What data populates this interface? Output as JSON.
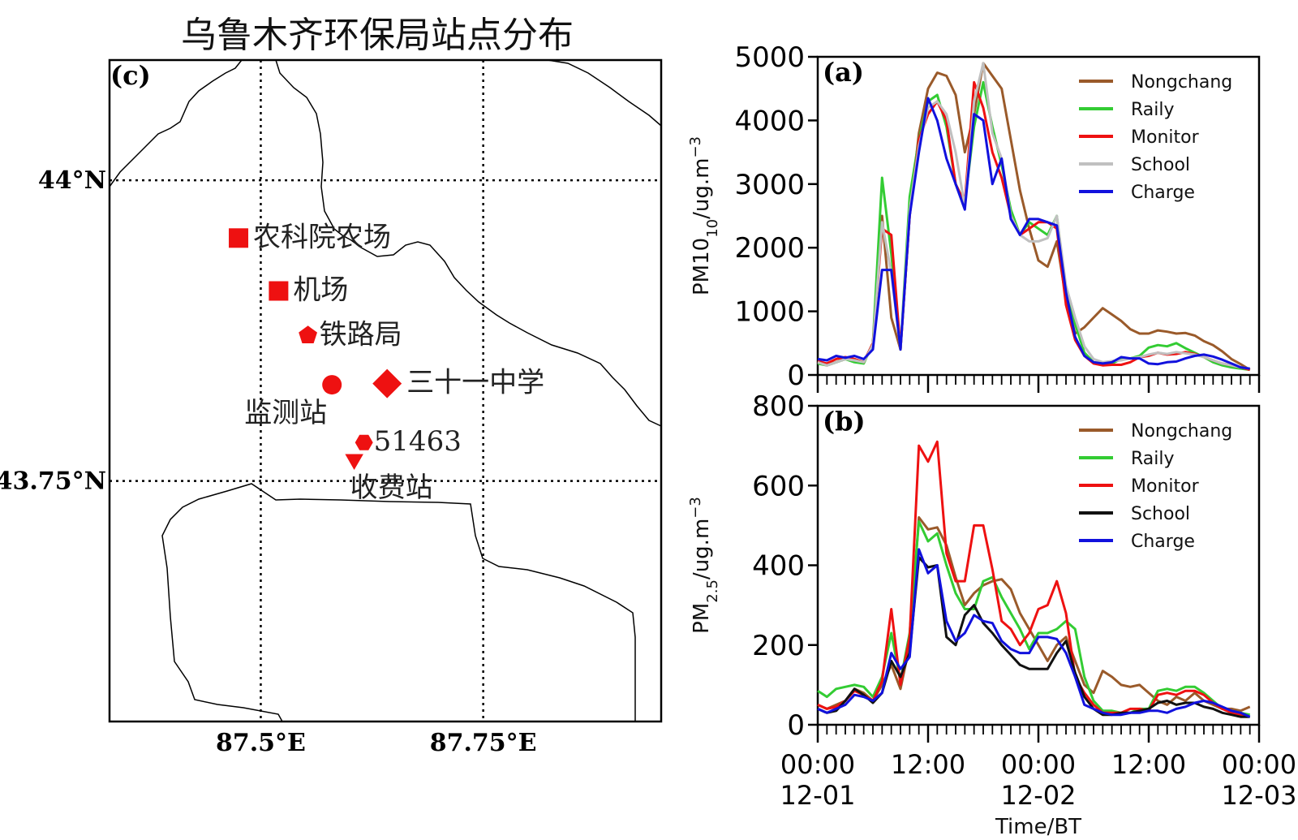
{
  "map": {
    "title": "乌鲁木齐环保局站点分布",
    "panel_label": "(c)",
    "lon_labels": [
      "87.5°E",
      "87.75°E"
    ],
    "lat_labels": [
      "44°N",
      "43.75°N"
    ],
    "lon_values": [
      87.5,
      87.75
    ],
    "lat_values": [
      44.0,
      43.75
    ],
    "lon_range": [
      87.33,
      87.95
    ],
    "lat_range": [
      43.55,
      44.1
    ],
    "marker_color": "#ee1111",
    "stations": [
      {
        "label": "农科院农场",
        "marker": "square",
        "lon": 87.475,
        "lat": 43.952
      },
      {
        "label": "机场",
        "marker": "square",
        "lon": 87.52,
        "lat": 43.908
      },
      {
        "label": "铁路局",
        "marker": "pentagon",
        "lon": 87.553,
        "lat": 43.871
      },
      {
        "label": "监测站",
        "marker": "circle",
        "lon": 87.58,
        "lat": 43.83
      },
      {
        "label": "三十一中学",
        "marker": "diamond",
        "lon": 87.642,
        "lat": 43.831
      },
      {
        "label": "51463",
        "marker": "hexagon",
        "lon": 87.616,
        "lat": 43.782
      },
      {
        "label": "收费站",
        "marker": "triangle-down",
        "lon": 87.605,
        "lat": 43.768
      }
    ]
  },
  "chart_data": [
    {
      "type": "line",
      "panel_label": "(a)",
      "ylabel_main": "PM10",
      "ylabel_sub": "10",
      "ylabel_unit": "/ug.m",
      "ylabel_sup": "−3",
      "ylim": [
        0,
        5000
      ],
      "yticks": [
        0,
        1000,
        2000,
        3000,
        4000,
        5000
      ],
      "legend_position": "upper-right",
      "x_hours": [
        0,
        1,
        2,
        3,
        4,
        5,
        6,
        7,
        8,
        9,
        10,
        11,
        12,
        13,
        14,
        15,
        16,
        17,
        18,
        19,
        20,
        21,
        22,
        23,
        24,
        25,
        26,
        27,
        28,
        29,
        30,
        31,
        32,
        33,
        34,
        35,
        36,
        37,
        38,
        39,
        40,
        41,
        42,
        43,
        44,
        45,
        46,
        47
      ],
      "series": [
        {
          "name": "Nongchang",
          "color": "#9a5a2a",
          "values": [
            200,
            150,
            200,
            250,
            250,
            200,
            500,
            2500,
            900,
            400,
            2500,
            3800,
            4500,
            4750,
            4700,
            4400,
            3500,
            4100,
            4900,
            4700,
            4500,
            3700,
            2900,
            2300,
            1800,
            1700,
            2100,
            1200,
            650,
            750,
            900,
            1050,
            950,
            850,
            720,
            650,
            650,
            700,
            680,
            650,
            660,
            620,
            530,
            470,
            370,
            250,
            170,
            80
          ]
        },
        {
          "name": "Raily",
          "color": "#33cc33",
          "values": [
            180,
            150,
            200,
            250,
            200,
            180,
            500,
            3100,
            1900,
            400,
            2800,
            3700,
            4300,
            4400,
            3900,
            3000,
            2700,
            3900,
            4600,
            3900,
            3300,
            2600,
            2200,
            2400,
            2300,
            2200,
            2500,
            1300,
            800,
            350,
            200,
            180,
            180,
            250,
            260,
            300,
            430,
            470,
            450,
            500,
            420,
            350,
            280,
            200,
            150,
            120,
            100,
            80
          ]
        },
        {
          "name": "Monitor",
          "color": "#ee1111",
          "values": [
            220,
            180,
            250,
            280,
            250,
            200,
            500,
            2300,
            2200,
            400,
            2500,
            3700,
            4100,
            4300,
            4000,
            3000,
            2700,
            4600,
            4200,
            3500,
            3100,
            2500,
            2200,
            2300,
            2400,
            2400,
            2300,
            1100,
            550,
            300,
            180,
            150,
            160,
            160,
            200,
            280,
            300,
            350,
            320,
            330,
            360,
            330,
            280,
            230,
            180,
            150,
            120,
            80
          ]
        },
        {
          "name": "School",
          "color": "#c0c0c0",
          "values": [
            200,
            150,
            200,
            250,
            230,
            200,
            480,
            2400,
            1600,
            400,
            2600,
            3600,
            4200,
            4300,
            4100,
            3500,
            2650,
            4300,
            4900,
            3800,
            3400,
            2500,
            2200,
            2100,
            2100,
            2150,
            2500,
            1400,
            900,
            450,
            250,
            200,
            220,
            230,
            260,
            280,
            320,
            350,
            330,
            360,
            340,
            320,
            280,
            230,
            180,
            150,
            120,
            100
          ]
        },
        {
          "name": "Charge",
          "color": "#1111dd",
          "values": [
            250,
            230,
            300,
            270,
            300,
            250,
            400,
            1650,
            1650,
            400,
            2500,
            3500,
            4350,
            4000,
            3400,
            3000,
            2600,
            4100,
            4000,
            3000,
            3400,
            2450,
            2200,
            2450,
            2450,
            2400,
            2350,
            1300,
            600,
            300,
            200,
            180,
            200,
            280,
            260,
            260,
            180,
            170,
            200,
            210,
            260,
            300,
            320,
            290,
            240,
            180,
            120,
            100
          ]
        }
      ]
    },
    {
      "type": "line",
      "panel_label": "(b)",
      "ylabel_main": "PM",
      "ylabel_sub": "2.5",
      "ylabel_unit": "/ug.m",
      "ylabel_sup": "−3",
      "ylim": [
        0,
        800
      ],
      "yticks": [
        0,
        200,
        400,
        600,
        800
      ],
      "legend_position": "upper-right",
      "x_hours": [
        0,
        1,
        2,
        3,
        4,
        5,
        6,
        7,
        8,
        9,
        10,
        11,
        12,
        13,
        14,
        15,
        16,
        17,
        18,
        19,
        20,
        21,
        22,
        23,
        24,
        25,
        26,
        27,
        28,
        29,
        30,
        31,
        32,
        33,
        34,
        35,
        36,
        37,
        38,
        39,
        40,
        41,
        42,
        43,
        44,
        45,
        46,
        47
      ],
      "xtick_labels": [
        [
          "00:00",
          "12-01"
        ],
        [
          "12:00",
          ""
        ],
        [
          "00:00",
          "12-02"
        ],
        [
          "12:00",
          ""
        ],
        [
          "00:00",
          "12-03"
        ]
      ],
      "xtick_hours": [
        0,
        12,
        24,
        36,
        48
      ],
      "xlabel": "Time/BT",
      "series": [
        {
          "name": "Nongchang",
          "color": "#9a5a2a",
          "values": [
            50,
            40,
            50,
            60,
            90,
            80,
            60,
            100,
            150,
            90,
            200,
            520,
            490,
            495,
            450,
            370,
            300,
            330,
            350,
            360,
            365,
            340,
            280,
            240,
            200,
            160,
            200,
            220,
            160,
            100,
            80,
            135,
            120,
            100,
            95,
            100,
            80,
            60,
            50,
            70,
            60,
            80,
            60,
            50,
            40,
            40,
            35,
            45
          ]
        },
        {
          "name": "Raily",
          "color": "#33cc33",
          "values": [
            85,
            70,
            90,
            95,
            100,
            95,
            70,
            120,
            230,
            110,
            230,
            510,
            460,
            480,
            400,
            330,
            290,
            290,
            360,
            370,
            320,
            280,
            240,
            190,
            230,
            230,
            240,
            260,
            240,
            120,
            60,
            35,
            35,
            30,
            30,
            40,
            40,
            85,
            90,
            85,
            95,
            95,
            80,
            60,
            40,
            35,
            30,
            25
          ]
        },
        {
          "name": "Monitor",
          "color": "#ee1111",
          "values": [
            50,
            40,
            45,
            60,
            85,
            75,
            60,
            110,
            290,
            100,
            220,
            700,
            660,
            710,
            430,
            360,
            360,
            500,
            500,
            390,
            260,
            240,
            200,
            230,
            290,
            300,
            360,
            280,
            120,
            80,
            50,
            30,
            30,
            30,
            40,
            40,
            35,
            75,
            80,
            75,
            85,
            85,
            75,
            55,
            40,
            30,
            25,
            20
          ]
        },
        {
          "name": "School",
          "color": "#111111",
          "values": [
            40,
            30,
            35,
            60,
            90,
            75,
            55,
            80,
            160,
            120,
            180,
            420,
            395,
            400,
            220,
            200,
            275,
            300,
            255,
            230,
            200,
            175,
            150,
            140,
            140,
            140,
            180,
            210,
            130,
            70,
            40,
            25,
            25,
            30,
            30,
            35,
            40,
            55,
            60,
            50,
            55,
            55,
            45,
            40,
            30,
            25,
            20,
            20
          ]
        },
        {
          "name": "Charge",
          "color": "#1111dd",
          "values": [
            40,
            30,
            40,
            50,
            75,
            70,
            60,
            80,
            180,
            140,
            170,
            440,
            380,
            400,
            260,
            210,
            230,
            275,
            260,
            255,
            210,
            190,
            180,
            180,
            220,
            220,
            215,
            180,
            120,
            50,
            40,
            30,
            25,
            25,
            30,
            30,
            35,
            35,
            30,
            40,
            45,
            55,
            60,
            55,
            45,
            35,
            30,
            20
          ]
        }
      ]
    }
  ]
}
